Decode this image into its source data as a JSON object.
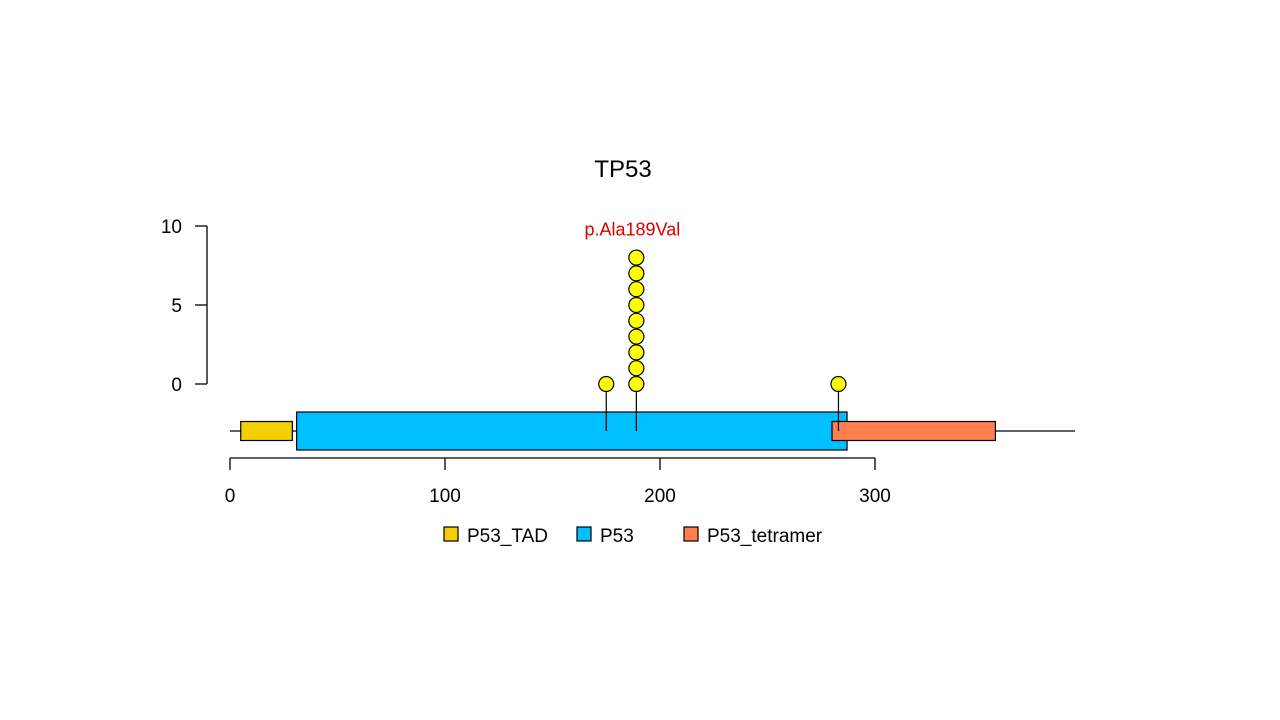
{
  "chart_data": {
    "type": "lollipop",
    "title": "TP53",
    "xlabel": "",
    "ylabel": "",
    "protein_length": 393,
    "x_ticks": [
      0,
      100,
      200,
      300
    ],
    "y_ticks": [
      0,
      5,
      10
    ],
    "ylim": [
      0,
      10
    ],
    "grid": false,
    "legend_position": "bottom",
    "domains": [
      {
        "name": "P53_TAD",
        "start": 5,
        "end": 29,
        "color": "#f5d000"
      },
      {
        "name": "P53",
        "start": 31,
        "end": 287,
        "color": "#00bfff"
      },
      {
        "name": "P53_tetramer",
        "start": 280,
        "end": 356,
        "color": "#ff7f50"
      }
    ],
    "mutations": [
      {
        "position": 175,
        "count": 1,
        "label": ""
      },
      {
        "position": 189,
        "count": 9,
        "label": "p.Ala189Val"
      },
      {
        "position": 283,
        "count": 1,
        "label": ""
      }
    ],
    "colors": {
      "lollipop": "#ffff00",
      "highlight_label": "#e00000"
    }
  }
}
